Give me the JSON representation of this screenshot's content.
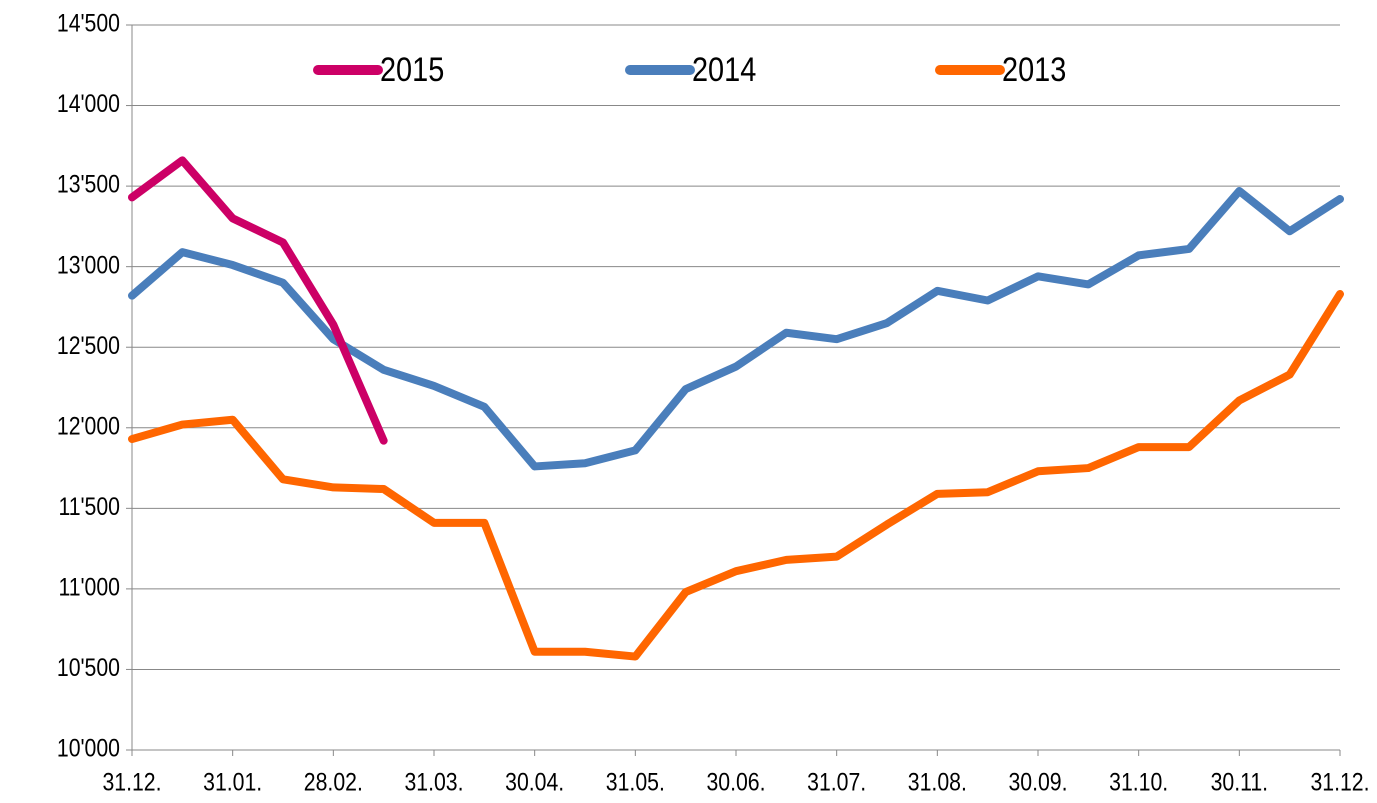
{
  "chart_data": {
    "type": "line",
    "categories": [
      "31.12.",
      null,
      "31.01.",
      null,
      "28.02.",
      null,
      "31.03.",
      null,
      "30.04.",
      null,
      "31.05.",
      null,
      "30.06.",
      null,
      "31.07.",
      null,
      "31.08.",
      null,
      "30.09.",
      null,
      "31.10.",
      null,
      "30.11.",
      null,
      "31.12."
    ],
    "series": [
      {
        "name": "2015",
        "color": "#cc0066",
        "values": [
          13430,
          13660,
          13300,
          13150,
          12640,
          11920,
          null,
          null,
          null,
          null,
          null,
          null,
          null,
          null,
          null,
          null,
          null,
          null,
          null,
          null,
          null,
          null,
          null,
          null,
          null
        ]
      },
      {
        "name": "2014",
        "color": "#4a7ebb",
        "values": [
          12820,
          13090,
          13010,
          12900,
          12550,
          12360,
          12260,
          12130,
          11760,
          11780,
          11860,
          12240,
          12380,
          12590,
          12550,
          12650,
          12850,
          12790,
          12940,
          12890,
          13070,
          13110,
          13470,
          13220,
          13420
        ]
      },
      {
        "name": "2013",
        "color": "#ff6600",
        "values": [
          11930,
          12020,
          12050,
          11680,
          11630,
          11620,
          11410,
          11410,
          10610,
          10610,
          10580,
          10980,
          11110,
          11180,
          11200,
          11400,
          11590,
          11600,
          11730,
          11750,
          11880,
          11880,
          12170,
          12330,
          12830
        ]
      }
    ],
    "ylim": [
      10000,
      14500
    ],
    "yticks": [
      {
        "value": 10000,
        "label": "10'000"
      },
      {
        "value": 10500,
        "label": "10'500"
      },
      {
        "value": 11000,
        "label": "11'000"
      },
      {
        "value": 11500,
        "label": "11'500"
      },
      {
        "value": 12000,
        "label": "12'000"
      },
      {
        "value": 12500,
        "label": "12'500"
      },
      {
        "value": 13000,
        "label": "13'000"
      },
      {
        "value": 13500,
        "label": "13'500"
      },
      {
        "value": 14000,
        "label": "14'000"
      },
      {
        "value": 14500,
        "label": "14'500"
      }
    ],
    "grid": true,
    "legend": "top"
  }
}
